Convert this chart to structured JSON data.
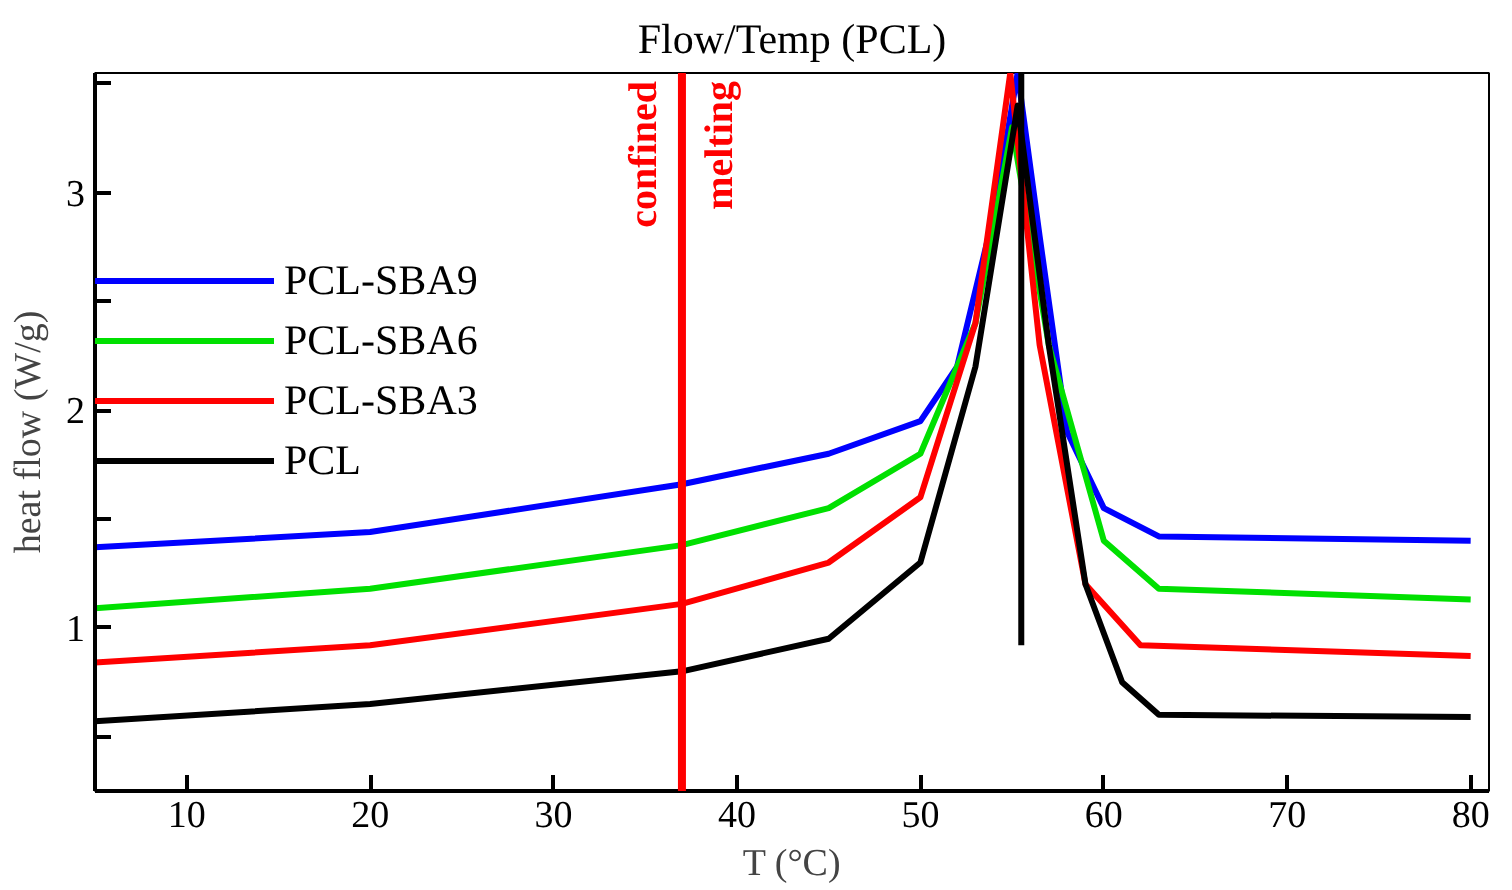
{
  "chart_data": {
    "type": "line",
    "xlabel": "T (°C)",
    "ylabel": "heat flow (W/g)",
    "annotations": [
      "Flow/Temp (PCL)"
    ],
    "xlim": [
      5,
      81
    ],
    "ylim": [
      0.25,
      3.55
    ],
    "xticks": [
      10,
      20,
      30,
      40,
      50,
      60,
      70,
      80
    ],
    "yticks": [
      {
        "value": 0.5,
        "label": null
      },
      1,
      {
        "value": 1.5,
        "label": null
      },
      2,
      {
        "value": 2.5,
        "label": null
      },
      3,
      {
        "value": 3.5,
        "label": null
      }
    ],
    "tick_labels": "xy",
    "grid": false,
    "legend": "top left",
    "marker": "none",
    "line_style": "solid",
    "ref_lines": [
      {
        "axis": "x",
        "value": 37,
        "label": "confined\nmelting",
        "color": "#ff0000"
      }
    ],
    "series": [
      {
        "name": "PCL-SBA9",
        "color": "#0000ff",
        "x": [
          5,
          20,
          37,
          45,
          50,
          52,
          54,
          55.3,
          56.5,
          58,
          60,
          63,
          80
        ],
        "values": [
          1.37,
          1.44,
          1.66,
          1.8,
          1.95,
          2.2,
          2.9,
          3.55,
          2.8,
          1.9,
          1.55,
          1.42,
          1.4
        ]
      },
      {
        "name": "PCL-SBA6",
        "color": "#00e000",
        "x": [
          5,
          20,
          37,
          45,
          50,
          53,
          55,
          57,
          60,
          63,
          80
        ],
        "values": [
          1.09,
          1.18,
          1.38,
          1.55,
          1.8,
          2.4,
          3.3,
          2.3,
          1.4,
          1.18,
          1.13
        ]
      },
      {
        "name": "PCL-SBA3",
        "color": "#ff0000",
        "x": [
          5,
          20,
          37,
          45,
          50,
          53,
          54.9,
          56.5,
          59,
          62,
          80
        ],
        "values": [
          0.84,
          0.92,
          1.11,
          1.3,
          1.6,
          2.4,
          3.55,
          2.3,
          1.2,
          0.92,
          0.87
        ]
      },
      {
        "name": "PCL",
        "color": "#000000",
        "x": [
          5,
          20,
          37,
          45,
          50,
          53,
          55.3,
          57,
          59,
          61,
          63,
          80
        ],
        "values": [
          0.57,
          0.65,
          0.8,
          0.95,
          1.3,
          2.2,
          3.4,
          2.3,
          1.2,
          0.75,
          0.6,
          0.59
        ]
      },
      {
        "color": "#000000",
        "x": [
          55.5,
          55.5
        ],
        "values": [
          0.92,
          3.55
        ]
      }
    ]
  }
}
